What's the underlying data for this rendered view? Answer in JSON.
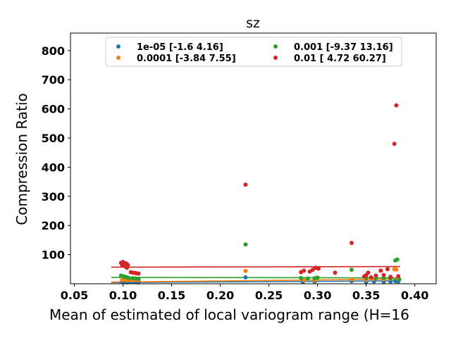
{
  "chart_data": {
    "type": "scatter",
    "title": "sz",
    "xlabel": "Mean of estimated of local variogram range (H=16",
    "ylabel": "Compression Ratio",
    "xlim": [
      0.046,
      0.422
    ],
    "ylim": [
      0,
      860
    ],
    "xticks": [
      "0.05",
      "0.10",
      "0.15",
      "0.20",
      "0.25",
      "0.30",
      "0.35",
      "0.40"
    ],
    "xtick_values": [
      0.05,
      0.1,
      0.15,
      0.2,
      0.25,
      0.3,
      0.35,
      0.4
    ],
    "yticks": [
      "100",
      "200",
      "300",
      "400",
      "500",
      "600",
      "700",
      "800"
    ],
    "ytick_values": [
      100,
      200,
      300,
      400,
      500,
      600,
      700,
      800
    ],
    "grid": false,
    "legend_position": "top-center",
    "series": [
      {
        "name": "1e-05 [-1.6   4.16]",
        "color": "#1f77b4",
        "fit": {
          "x": [
            0.088,
            0.385
          ],
          "y": [
            4,
            10
          ]
        },
        "points": [
          [
            0.099,
            8
          ],
          [
            0.1,
            6
          ],
          [
            0.102,
            7
          ],
          [
            0.104,
            5
          ],
          [
            0.106,
            6
          ],
          [
            0.11,
            7
          ],
          [
            0.113,
            6
          ],
          [
            0.116,
            5
          ],
          [
            0.226,
            22
          ],
          [
            0.285,
            7
          ],
          [
            0.297,
            8
          ],
          [
            0.335,
            9
          ],
          [
            0.35,
            7
          ],
          [
            0.358,
            8
          ],
          [
            0.368,
            7
          ],
          [
            0.375,
            8
          ],
          [
            0.38,
            9
          ],
          [
            0.383,
            8
          ]
        ]
      },
      {
        "name": "0.0001 [-3.84  7.55]",
        "color": "#ff7f0e",
        "fit": {
          "x": [
            0.088,
            0.385
          ],
          "y": [
            6,
            16
          ]
        },
        "points": [
          [
            0.099,
            13
          ],
          [
            0.101,
            14
          ],
          [
            0.104,
            12
          ],
          [
            0.107,
            13
          ],
          [
            0.11,
            12
          ],
          [
            0.113,
            13
          ],
          [
            0.116,
            12
          ],
          [
            0.226,
            44
          ],
          [
            0.286,
            12
          ],
          [
            0.297,
            13
          ],
          [
            0.335,
            15
          ],
          [
            0.35,
            14
          ],
          [
            0.357,
            16
          ],
          [
            0.368,
            15
          ],
          [
            0.375,
            17
          ],
          [
            0.379,
            50
          ],
          [
            0.381,
            49
          ],
          [
            0.383,
            16
          ]
        ]
      },
      {
        "name": "0.001 [-9.37 13.16]",
        "color": "#2ca02c",
        "fit": {
          "x": [
            0.088,
            0.385
          ],
          "y": [
            22,
            20
          ]
        },
        "points": [
          [
            0.098,
            28
          ],
          [
            0.1,
            26
          ],
          [
            0.102,
            24
          ],
          [
            0.104,
            22
          ],
          [
            0.106,
            20
          ],
          [
            0.11,
            19
          ],
          [
            0.113,
            18
          ],
          [
            0.116,
            17
          ],
          [
            0.226,
            135
          ],
          [
            0.283,
            20
          ],
          [
            0.29,
            18
          ],
          [
            0.297,
            19
          ],
          [
            0.3,
            21
          ],
          [
            0.335,
            48
          ],
          [
            0.35,
            20
          ],
          [
            0.36,
            19
          ],
          [
            0.368,
            20
          ],
          [
            0.375,
            18
          ],
          [
            0.38,
            80
          ],
          [
            0.382,
            83
          ],
          [
            0.384,
            15
          ]
        ]
      },
      {
        "name": "0.01 [ 4.72 60.27]",
        "color": "#d62728",
        "fit": {
          "x": [
            0.088,
            0.385
          ],
          "y": [
            57,
            59
          ]
        },
        "points": [
          [
            0.098,
            72
          ],
          [
            0.099,
            65
          ],
          [
            0.1,
            75
          ],
          [
            0.101,
            68
          ],
          [
            0.102,
            60
          ],
          [
            0.103,
            70
          ],
          [
            0.104,
            55
          ],
          [
            0.105,
            65
          ],
          [
            0.108,
            40
          ],
          [
            0.11,
            38
          ],
          [
            0.112,
            37
          ],
          [
            0.114,
            36
          ],
          [
            0.116,
            35
          ],
          [
            0.226,
            340
          ],
          [
            0.283,
            40
          ],
          [
            0.286,
            45
          ],
          [
            0.292,
            42
          ],
          [
            0.295,
            48
          ],
          [
            0.298,
            55
          ],
          [
            0.301,
            52
          ],
          [
            0.318,
            38
          ],
          [
            0.335,
            140
          ],
          [
            0.348,
            25
          ],
          [
            0.35,
            30
          ],
          [
            0.352,
            38
          ],
          [
            0.355,
            22
          ],
          [
            0.36,
            28
          ],
          [
            0.365,
            45
          ],
          [
            0.368,
            30
          ],
          [
            0.372,
            50
          ],
          [
            0.375,
            24
          ],
          [
            0.379,
            480
          ],
          [
            0.381,
            612
          ],
          [
            0.383,
            26
          ]
        ]
      }
    ]
  }
}
